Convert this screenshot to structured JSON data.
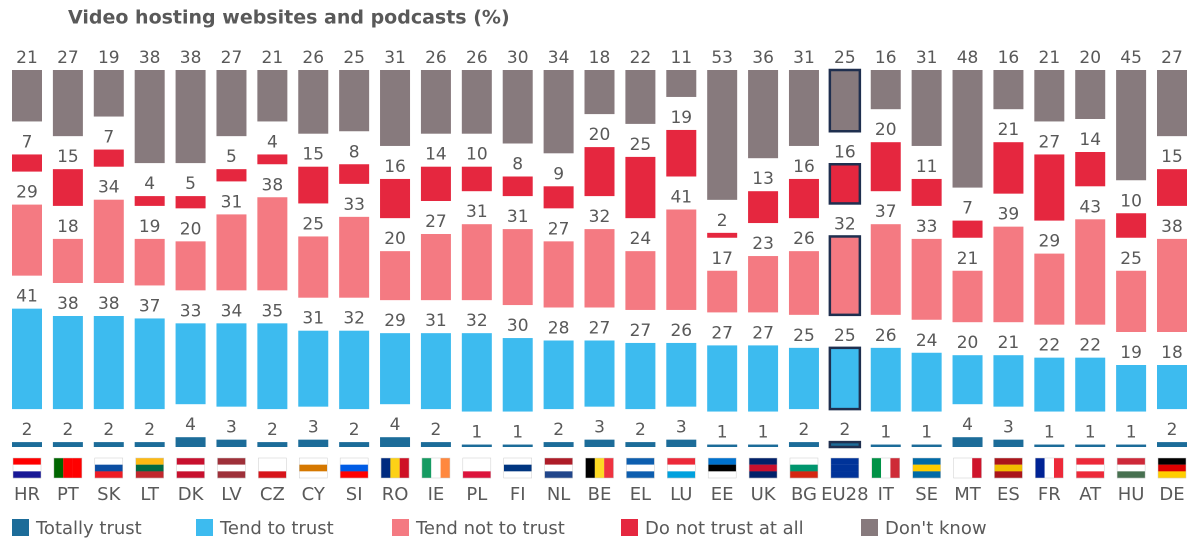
{
  "chart_data": {
    "type": "bar",
    "stacked": true,
    "title": "Video hosting websites and podcasts (%)",
    "categories": [
      "HR",
      "PT",
      "SK",
      "LT",
      "DK",
      "LV",
      "CZ",
      "CY",
      "SI",
      "RO",
      "IE",
      "PL",
      "FI",
      "NL",
      "BE",
      "EL",
      "LU",
      "EE",
      "UK",
      "BG",
      "EU28",
      "IT",
      "SE",
      "MT",
      "ES",
      "FR",
      "AT",
      "HU",
      "DE"
    ],
    "highlight": "EU28",
    "series": [
      {
        "name": "Totally trust",
        "color": "#1c6c99",
        "values": [
          2,
          2,
          2,
          2,
          4,
          3,
          2,
          3,
          2,
          4,
          2,
          1,
          1,
          2,
          3,
          2,
          3,
          1,
          1,
          2,
          2,
          1,
          1,
          4,
          3,
          1,
          1,
          1,
          2
        ]
      },
      {
        "name": "Tend to trust",
        "color": "#3dbbef",
        "values": [
          41,
          38,
          38,
          37,
          33,
          34,
          35,
          31,
          32,
          29,
          31,
          32,
          30,
          28,
          27,
          27,
          26,
          27,
          27,
          25,
          25,
          26,
          24,
          20,
          21,
          22,
          22,
          19,
          18
        ]
      },
      {
        "name": "Tend not to trust",
        "color": "#f47a82",
        "values": [
          29,
          18,
          34,
          19,
          20,
          31,
          38,
          25,
          33,
          20,
          27,
          31,
          31,
          27,
          32,
          24,
          41,
          17,
          23,
          26,
          32,
          37,
          33,
          21,
          39,
          29,
          43,
          25,
          38
        ]
      },
      {
        "name": "Do not trust at all",
        "color": "#e5273f",
        "values": [
          7,
          15,
          7,
          4,
          5,
          5,
          4,
          15,
          8,
          16,
          14,
          10,
          8,
          9,
          20,
          25,
          19,
          2,
          13,
          16,
          16,
          20,
          11,
          7,
          21,
          27,
          14,
          10,
          15
        ]
      },
      {
        "name": "Don't know",
        "color": "#877a7d",
        "values": [
          21,
          27,
          19,
          38,
          38,
          27,
          21,
          26,
          25,
          31,
          26,
          26,
          30,
          34,
          18,
          22,
          11,
          53,
          36,
          31,
          25,
          16,
          31,
          48,
          16,
          21,
          20,
          45,
          27
        ]
      }
    ]
  }
}
